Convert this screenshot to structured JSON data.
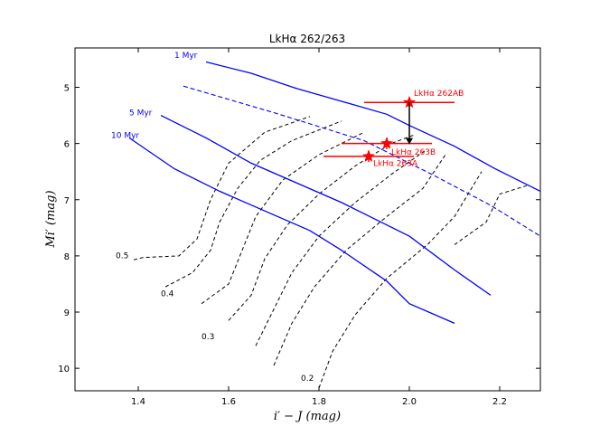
{
  "chart_data": {
    "type": "line",
    "title": "LkHα 262/263",
    "xlabel": "i′ − J (mag)",
    "ylabel": "Mi′ (mag)",
    "xlim": [
      1.26,
      2.29
    ],
    "ylim": [
      10.4,
      4.3
    ],
    "x_ticks": [
      1.4,
      1.6,
      1.8,
      2.0,
      2.2
    ],
    "x_tick_labels": [
      "1.4",
      "1.6",
      "1.8",
      "2.0",
      "2.2"
    ],
    "y_ticks": [
      5,
      6,
      7,
      8,
      9,
      10
    ],
    "y_tick_labels": [
      "5",
      "6",
      "7",
      "8",
      "9",
      "10"
    ],
    "isochrones": [
      {
        "name": "1 Myr",
        "label_at": [
          1.48,
          4.48
        ],
        "style": "solid",
        "color": "#0000ff",
        "points": [
          [
            1.55,
            4.55
          ],
          [
            1.65,
            4.75
          ],
          [
            1.75,
            5.02
          ],
          [
            1.85,
            5.25
          ],
          [
            1.95,
            5.48
          ],
          [
            2.0,
            5.68
          ],
          [
            2.1,
            6.05
          ],
          [
            2.19,
            6.45
          ],
          [
            2.29,
            6.85
          ]
        ]
      },
      {
        "name": "5 Myr",
        "label_at": [
          1.38,
          5.5
        ],
        "style": "solid",
        "color": "#0000ff",
        "points": [
          [
            1.45,
            5.5
          ],
          [
            1.55,
            5.9
          ],
          [
            1.65,
            6.35
          ],
          [
            1.75,
            6.7
          ],
          [
            1.85,
            7.05
          ],
          [
            1.95,
            7.45
          ],
          [
            2.0,
            7.65
          ],
          [
            2.1,
            8.25
          ],
          [
            2.18,
            8.7
          ]
        ]
      },
      {
        "name": "10 Myr",
        "label_at": [
          1.34,
          5.9
        ],
        "style": "solid",
        "color": "#0000ff",
        "points": [
          [
            1.38,
            5.9
          ],
          [
            1.48,
            6.45
          ],
          [
            1.58,
            6.85
          ],
          [
            1.68,
            7.2
          ],
          [
            1.78,
            7.55
          ],
          [
            1.85,
            7.9
          ],
          [
            1.95,
            8.45
          ],
          [
            2.0,
            8.85
          ],
          [
            2.1,
            9.2
          ]
        ]
      }
    ],
    "dashed_isochrone": {
      "color": "#0000ff",
      "points": [
        [
          1.5,
          4.98
        ],
        [
          1.7,
          5.45
        ],
        [
          1.9,
          5.95
        ],
        [
          2.05,
          6.55
        ],
        [
          2.18,
          7.1
        ],
        [
          2.29,
          7.65
        ]
      ]
    },
    "mass_tracks": [
      {
        "label": "0.5",
        "label_at": [
          1.35,
          8.04
        ],
        "points": [
          [
            1.39,
            8.07
          ],
          [
            1.41,
            8.03
          ],
          [
            1.49,
            8.0
          ],
          [
            1.53,
            7.7
          ],
          [
            1.56,
            7.0
          ],
          [
            1.6,
            6.35
          ],
          [
            1.68,
            5.8
          ],
          [
            1.78,
            5.52
          ]
        ]
      },
      {
        "label": "0.4",
        "label_at": [
          1.45,
          8.72
        ],
        "points": [
          [
            1.46,
            8.55
          ],
          [
            1.52,
            8.3
          ],
          [
            1.56,
            7.9
          ],
          [
            1.58,
            7.4
          ],
          [
            1.62,
            6.8
          ],
          [
            1.67,
            6.3
          ],
          [
            1.74,
            5.95
          ],
          [
            1.85,
            5.6
          ]
        ]
      },
      {
        "label": "",
        "label_at": [
          0,
          0
        ],
        "points": [
          [
            1.54,
            8.85
          ],
          [
            1.6,
            8.5
          ],
          [
            1.63,
            7.9
          ],
          [
            1.66,
            7.3
          ],
          [
            1.72,
            6.65
          ],
          [
            1.8,
            6.2
          ],
          [
            1.9,
            5.8
          ]
        ]
      },
      {
        "label": "0.3",
        "label_at": [
          1.54,
          9.48
        ],
        "points": [
          [
            1.6,
            9.15
          ],
          [
            1.65,
            8.7
          ],
          [
            1.68,
            8.05
          ],
          [
            1.73,
            7.45
          ],
          [
            1.8,
            6.9
          ],
          [
            1.88,
            6.4
          ],
          [
            1.96,
            6.0
          ],
          [
            2.01,
            5.85
          ]
        ]
      },
      {
        "label": "",
        "label_at": [
          0,
          0
        ],
        "points": [
          [
            1.66,
            9.6
          ],
          [
            1.7,
            8.95
          ],
          [
            1.74,
            8.3
          ],
          [
            1.8,
            7.65
          ],
          [
            1.88,
            7.05
          ],
          [
            1.96,
            6.55
          ],
          [
            2.04,
            6.1
          ]
        ]
      },
      {
        "label": "",
        "label_at": [
          0,
          0
        ],
        "points": [
          [
            1.7,
            9.95
          ],
          [
            1.74,
            9.2
          ],
          [
            1.79,
            8.55
          ],
          [
            1.86,
            7.9
          ],
          [
            1.95,
            7.3
          ],
          [
            2.03,
            6.8
          ],
          [
            2.08,
            6.2
          ]
        ]
      },
      {
        "label": "0.2",
        "label_at": [
          1.76,
          10.22
        ],
        "points": [
          [
            1.8,
            10.35
          ],
          [
            1.83,
            9.7
          ],
          [
            1.88,
            9.05
          ],
          [
            1.95,
            8.4
          ],
          [
            2.04,
            7.8
          ],
          [
            2.1,
            7.3
          ],
          [
            2.16,
            6.5
          ]
        ]
      },
      {
        "label": "",
        "label_at": [
          0,
          0
        ],
        "points": [
          [
            2.1,
            7.8
          ],
          [
            2.17,
            7.4
          ],
          [
            2.2,
            6.9
          ],
          [
            2.26,
            6.75
          ]
        ]
      }
    ],
    "stars": [
      {
        "name": "LkHα 262AB",
        "x": 2.0,
        "y": 5.27,
        "xerr": 0.1,
        "yerr": 0.0,
        "label_at": [
          2.01,
          5.15
        ]
      },
      {
        "name": "LkHα 263B",
        "x": 1.95,
        "y": 6.0,
        "xerr": 0.1,
        "yerr": 0.1,
        "label_at": [
          1.96,
          6.2
        ]
      },
      {
        "name": "LkHα 263A",
        "x": 1.91,
        "y": 6.23,
        "xerr": 0.1,
        "yerr": 0.1,
        "label_at": [
          1.92,
          6.4
        ]
      }
    ],
    "arrow": {
      "from": [
        2.0,
        5.27
      ],
      "to": [
        2.0,
        6.0
      ],
      "color": "#000000"
    }
  }
}
